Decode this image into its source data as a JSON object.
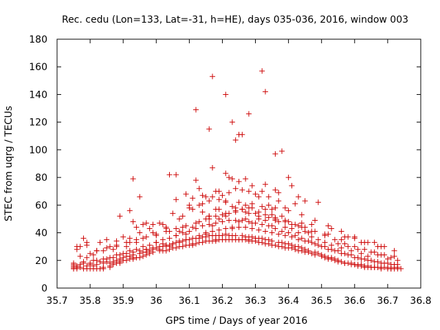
{
  "chart_data": {
    "type": "scatter",
    "title": "Rec. cedu (Lon=133, Lat=-31, h=HE), days 035-036, 2016, window 003",
    "xlabel": "GPS time / Days of year 2016",
    "ylabel": "STEC from uqrg / TECUs",
    "xlim": [
      35.7,
      36.8
    ],
    "ylim": [
      0,
      180
    ],
    "grid": false,
    "marker": "+",
    "color": "#cc0000",
    "x_ticks": [
      {
        "v": 35.7,
        "label": "35.7"
      },
      {
        "v": 35.8,
        "label": "35.8"
      },
      {
        "v": 35.9,
        "label": "35.9"
      },
      {
        "v": 36.0,
        "label": "36"
      },
      {
        "v": 36.1,
        "label": "36.1"
      },
      {
        "v": 36.2,
        "label": "36.2"
      },
      {
        "v": 36.3,
        "label": "36.3"
      },
      {
        "v": 36.4,
        "label": "36.4"
      },
      {
        "v": 36.5,
        "label": "36.5"
      },
      {
        "v": 36.6,
        "label": "36.6"
      },
      {
        "v": 36.7,
        "label": "36.7"
      },
      {
        "v": 36.8,
        "label": "36.8"
      }
    ],
    "y_ticks": [
      {
        "v": 0,
        "label": "0"
      },
      {
        "v": 20,
        "label": "20"
      },
      {
        "v": 40,
        "label": "40"
      },
      {
        "v": 60,
        "label": "60"
      },
      {
        "v": 80,
        "label": "80"
      },
      {
        "v": 100,
        "label": "100"
      },
      {
        "v": 120,
        "label": "120"
      },
      {
        "v": 140,
        "label": "140"
      },
      {
        "v": 160,
        "label": "160"
      },
      {
        "v": 180,
        "label": "180"
      }
    ],
    "series": [
      {
        "name": "STEC",
        "x": [
          35.75,
          35.75,
          35.75,
          35.75,
          35.75,
          35.76,
          35.76,
          35.77,
          35.78,
          35.79,
          35.8,
          35.81,
          35.82,
          35.83,
          35.84,
          35.84,
          35.86,
          35.86,
          35.87,
          35.88,
          35.89,
          35.89,
          35.9,
          35.91,
          35.92,
          35.93,
          35.93,
          35.94,
          35.95,
          35.96,
          35.97,
          35.98,
          35.99,
          36.01,
          36.01,
          36.02,
          36.03,
          36.04,
          36.05,
          36.06,
          36.07,
          36.08,
          36.09,
          36.1,
          36.11,
          36.11,
          36.12,
          36.13,
          36.14,
          36.15,
          36.16,
          36.17,
          36.18,
          36.18,
          36.19,
          36.2,
          36.21,
          36.22,
          36.23,
          36.24,
          36.25,
          36.25,
          36.26,
          36.27,
          36.28,
          36.28,
          36.29,
          36.3,
          36.31,
          36.32,
          36.33,
          36.34,
          36.35,
          36.36,
          36.37,
          36.38,
          36.39,
          36.4,
          36.41,
          36.42,
          36.43,
          36.44,
          36.45,
          36.46,
          36.47,
          36.48,
          36.5,
          36.51,
          36.52,
          36.53,
          36.54,
          36.55,
          36.57,
          36.58,
          36.59,
          36.6,
          36.61,
          36.62,
          36.63,
          36.64,
          36.65,
          36.66,
          36.67,
          36.68,
          36.69,
          36.7,
          36.71,
          36.72,
          36.73,
          36.74,
          35.75,
          35.76,
          35.77,
          35.78,
          35.79,
          35.8,
          35.81,
          35.82,
          35.84,
          35.85,
          35.86,
          35.87,
          35.88,
          35.89,
          35.9,
          35.91,
          35.92,
          35.93,
          35.95,
          35.96,
          35.97,
          35.98,
          35.99,
          36.0,
          36.02,
          36.03,
          36.04,
          36.05,
          36.06,
          36.07,
          36.08,
          36.09,
          36.1,
          36.12,
          36.13,
          36.14,
          36.15,
          36.16,
          36.17,
          36.18,
          36.19,
          36.2,
          36.21,
          36.22,
          36.23,
          36.24,
          36.26,
          36.27,
          36.28,
          36.29,
          36.3,
          36.31,
          36.32,
          36.33,
          36.34,
          36.35,
          36.37,
          36.38,
          36.39,
          36.4,
          36.41,
          36.42,
          36.43,
          36.44,
          36.45,
          36.46,
          36.48,
          36.49,
          36.5,
          36.51,
          36.52,
          36.53,
          36.54,
          36.55,
          36.56,
          36.57,
          36.59,
          36.6,
          36.61,
          36.62,
          36.63,
          36.64,
          36.65,
          36.66,
          36.67,
          36.68,
          36.7,
          36.71,
          36.72,
          36.73,
          35.77,
          35.79,
          35.81,
          35.83,
          35.85,
          35.87,
          35.89,
          35.91,
          35.93,
          35.95,
          35.97,
          35.99,
          36.01,
          36.03,
          36.05,
          36.07,
          36.09,
          36.11,
          36.13,
          36.15,
          36.17,
          36.19,
          36.21,
          36.23,
          36.25,
          36.27,
          36.29,
          36.31,
          36.33,
          36.35,
          36.37,
          36.39,
          36.41,
          36.43,
          36.45,
          36.47,
          36.49,
          36.51,
          36.53,
          36.55,
          36.57,
          36.59,
          36.61,
          36.63,
          36.65,
          36.67,
          36.69,
          36.71,
          36.73,
          35.78,
          35.8,
          35.82,
          35.84,
          35.86,
          35.88,
          35.9,
          35.92,
          35.94,
          35.96,
          35.98,
          36.0,
          36.02,
          36.04,
          36.06,
          36.08,
          36.1,
          36.12,
          36.14,
          36.16,
          36.18,
          36.2,
          36.22,
          36.24,
          36.26,
          36.28,
          36.3,
          36.32,
          36.34,
          36.36,
          36.38,
          36.4,
          36.42,
          36.44,
          36.46,
          36.48,
          36.5,
          36.52,
          36.54,
          36.56,
          36.58,
          36.6,
          36.62,
          36.64,
          36.66,
          36.68,
          36.7,
          36.72,
          35.76,
          35.79,
          35.82,
          35.85,
          35.88,
          35.91,
          35.94,
          35.97,
          36.0,
          36.03,
          36.06,
          36.09,
          36.12,
          36.15,
          36.18,
          36.21,
          36.24,
          36.27,
          36.3,
          36.33,
          36.36,
          36.39,
          36.42,
          36.45,
          36.48,
          36.51,
          36.54,
          36.57,
          36.6,
          36.63,
          36.66,
          36.69,
          36.72,
          35.8,
          35.84,
          35.88,
          35.92,
          35.96,
          36.0,
          36.04,
          36.08,
          36.12,
          36.16,
          36.2,
          36.24,
          36.28,
          36.32,
          36.36,
          36.4,
          36.44,
          36.48,
          36.52,
          36.56,
          36.6,
          36.64,
          36.68,
          36.72,
          35.89,
          35.93,
          35.96,
          36.02,
          36.05,
          36.08,
          36.1,
          36.11,
          36.14,
          36.16,
          36.17,
          36.19,
          36.21,
          36.22,
          36.24,
          36.25,
          36.27,
          36.29,
          36.31,
          36.33,
          36.35,
          36.36,
          36.38,
          36.4,
          36.43,
          36.46,
          36.52,
          36.56,
          36.6,
          36.67,
          35.93,
          35.95,
          36.04,
          36.06,
          36.09,
          36.1,
          36.12,
          36.13,
          36.14,
          36.15,
          36.16,
          36.17,
          36.18,
          36.2,
          36.21,
          36.22,
          36.23,
          36.24,
          36.25,
          36.26,
          36.27,
          36.28,
          36.29,
          36.3,
          36.32,
          36.33,
          36.34,
          36.35,
          36.36,
          36.37,
          36.38,
          36.4,
          36.41,
          36.43,
          36.45,
          36.49,
          36.12,
          36.17,
          36.21,
          36.24,
          36.25,
          36.26,
          36.28,
          36.32,
          36.33,
          36.36,
          36.16,
          36.23,
          35.92,
          35.97,
          35.99,
          36.03,
          36.06,
          36.11,
          36.14,
          36.18,
          36.19,
          36.22,
          36.26,
          36.29,
          36.31,
          36.34,
          36.37,
          36.39,
          36.42,
          36.44,
          36.47,
          36.53,
          36.58,
          36.62,
          36.66,
          35.94,
          35.99,
          36.02,
          36.07,
          36.13,
          36.16,
          36.19,
          36.21,
          36.23,
          36.26,
          36.28,
          36.31,
          36.34,
          36.36,
          36.39,
          36.41,
          36.44,
          36.47,
          36.51,
          36.57,
          36.63,
          36.69,
          35.76,
          35.77,
          35.78,
          35.79,
          35.81,
          35.82,
          35.83,
          35.85,
          35.86,
          35.87,
          35.88,
          35.9,
          35.91,
          35.92,
          35.94,
          35.95,
          35.97,
          35.98,
          36.0,
          36.01,
          36.03,
          36.04,
          36.06,
          36.07,
          36.09,
          36.11,
          36.13,
          36.15,
          36.17,
          36.19,
          36.21,
          36.23,
          36.25,
          36.27,
          36.29,
          36.31,
          36.33,
          36.35,
          36.37,
          36.39,
          36.41,
          36.43,
          36.45,
          36.47,
          36.49,
          36.51,
          36.53,
          36.55,
          36.56,
          36.58,
          36.59,
          36.61,
          36.62,
          36.64,
          36.65,
          36.67,
          36.68,
          36.7,
          36.71,
          36.73
        ],
        "y": [
          14,
          14,
          15,
          16,
          17,
          14,
          15,
          15,
          14,
          14,
          14,
          14,
          14,
          14,
          14,
          15,
          16,
          15,
          17,
          18,
          19,
          18,
          20,
          20,
          21,
          21,
          22,
          22,
          22,
          23,
          24,
          25,
          26,
          27,
          28,
          27,
          27,
          28,
          29,
          29,
          30,
          30,
          31,
          31,
          32,
          31,
          32,
          33,
          33,
          34,
          34,
          34,
          35,
          34,
          35,
          35,
          35,
          35,
          35,
          35,
          35,
          35,
          35,
          35,
          35,
          34,
          34,
          34,
          33,
          33,
          32,
          32,
          31,
          31,
          30,
          30,
          29,
          29,
          29,
          28,
          27,
          27,
          26,
          26,
          25,
          24,
          23,
          22,
          21,
          21,
          20,
          19,
          18,
          18,
          17,
          17,
          16,
          16,
          15,
          15,
          15,
          15,
          15,
          14,
          15,
          14,
          14,
          14,
          14,
          14,
          18,
          16,
          17,
          18,
          16,
          17,
          16,
          17,
          18,
          19,
          18,
          19,
          20,
          21,
          22,
          23,
          23,
          24,
          25,
          26,
          26,
          27,
          28,
          29,
          30,
          31,
          31,
          32,
          33,
          34,
          34,
          35,
          35,
          36,
          36,
          37,
          37,
          38,
          38,
          38,
          38,
          38,
          39,
          38,
          38,
          38,
          38,
          37,
          37,
          37,
          36,
          36,
          36,
          35,
          35,
          34,
          33,
          33,
          32,
          32,
          31,
          30,
          30,
          29,
          28,
          27,
          26,
          25,
          24,
          23,
          22,
          22,
          21,
          20,
          19,
          18,
          18,
          17,
          17,
          17,
          16,
          16,
          15,
          15,
          15,
          15,
          15,
          14,
          15,
          15,
          23,
          22,
          20,
          19,
          21,
          22,
          24,
          25,
          26,
          27,
          28,
          29,
          30,
          31,
          32,
          33,
          35,
          36,
          38,
          39,
          41,
          42,
          43,
          43,
          44,
          44,
          43,
          42,
          41,
          40,
          39,
          38,
          37,
          35,
          34,
          33,
          31,
          30,
          28,
          27,
          25,
          24,
          22,
          21,
          20,
          19,
          18,
          17,
          17,
          19,
          18,
          20,
          21,
          22,
          24,
          25,
          27,
          28,
          30,
          31,
          33,
          35,
          36,
          38,
          40,
          41,
          43,
          45,
          46,
          47,
          48,
          49,
          49,
          49,
          48,
          47,
          46,
          45,
          43,
          41,
          40,
          38,
          36,
          34,
          32,
          30,
          28,
          27,
          25,
          24,
          22,
          21,
          20,
          19,
          18,
          18,
          17,
          30,
          31,
          27,
          29,
          31,
          33,
          35,
          37,
          39,
          41,
          43,
          45,
          47,
          50,
          52,
          54,
          55,
          55,
          54,
          53,
          51,
          49,
          46,
          44,
          41,
          38,
          35,
          32,
          30,
          28,
          26,
          24,
          23,
          25,
          27,
          30,
          33,
          36,
          38,
          41,
          44,
          47,
          50,
          53,
          56,
          58,
          59,
          58,
          56,
          53,
          49,
          45,
          41,
          37,
          33,
          30,
          27,
          52,
          48,
          46,
          46,
          54,
          52,
          60,
          57,
          55,
          52,
          66,
          57,
          63,
          54,
          58,
          62,
          60,
          58,
          55,
          57,
          53,
          49,
          52,
          48,
          45,
          40,
          39,
          35,
          36,
          30,
          79,
          66,
          82,
          82,
          68,
          58,
          78,
          72,
          67,
          66,
          63,
          87,
          70,
          67,
          83,
          80,
          79,
          72,
          77,
          71,
          79,
          70,
          74,
          68,
          70,
          75,
          66,
          57,
          71,
          69,
          99,
          80,
          74,
          66,
          63,
          62,
          129,
          153,
          140,
          107,
          111,
          111,
          126,
          157,
          142,
          97,
          115,
          120,
          56,
          47,
          46,
          44,
          64,
          65,
          61,
          57,
          70,
          69,
          57,
          61,
          66,
          60,
          63,
          58,
          61,
          47,
          46,
          43,
          37,
          33,
          33,
          44,
          40,
          32,
          50,
          60,
          52,
          64,
          62,
          59,
          57,
          54,
          52,
          51,
          50,
          48,
          46,
          44,
          41,
          39,
          37,
          33,
          30,
          28,
          30,
          36,
          33,
          24,
          27,
          33,
          35,
          30,
          28,
          34,
          37,
          30,
          36,
          33,
          40,
          28,
          43,
          33,
          47,
          43,
          30,
          38,
          41,
          39,
          44,
          48,
          40,
          45,
          50,
          52,
          44,
          48,
          50,
          47,
          50,
          49,
          45,
          48,
          44,
          43,
          40,
          41,
          37,
          35,
          33,
          31,
          32,
          29,
          30,
          27,
          28,
          25,
          23,
          26,
          24,
          24,
          21,
          22,
          20
        ]
      }
    ]
  }
}
